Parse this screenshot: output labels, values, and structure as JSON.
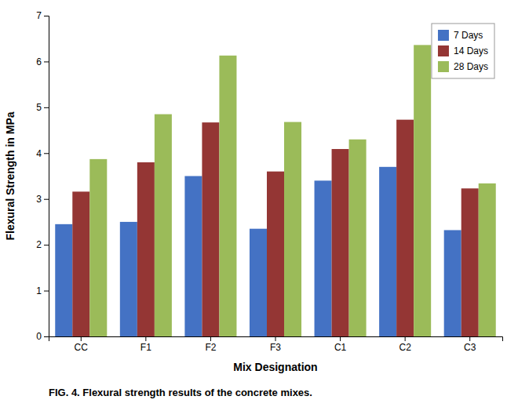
{
  "chart_data": {
    "type": "bar",
    "caption": "FIG. 4. Flexural strength results of the concrete mixes.",
    "xlabel": "Mix Designation",
    "ylabel": "Flexural Strength in MPa",
    "categories": [
      "CC",
      "F1",
      "F2",
      "F3",
      "C1",
      "C2",
      "C3"
    ],
    "series": [
      {
        "name": "7 Days",
        "color": "#4472c4",
        "values": [
          2.45,
          2.5,
          3.5,
          2.35,
          3.4,
          3.7,
          2.32
        ]
      },
      {
        "name": "14 Days",
        "color": "#943634",
        "values": [
          3.16,
          3.8,
          4.67,
          3.6,
          4.09,
          4.73,
          3.23
        ]
      },
      {
        "name": "28 Days",
        "color": "#9bbb59",
        "values": [
          3.87,
          4.85,
          6.13,
          4.68,
          4.3,
          6.36,
          3.34
        ]
      }
    ],
    "ylim": [
      0,
      7
    ],
    "yticks": [
      0,
      1,
      2,
      3,
      4,
      5,
      6,
      7
    ],
    "grid": false,
    "legend": "upper right"
  }
}
